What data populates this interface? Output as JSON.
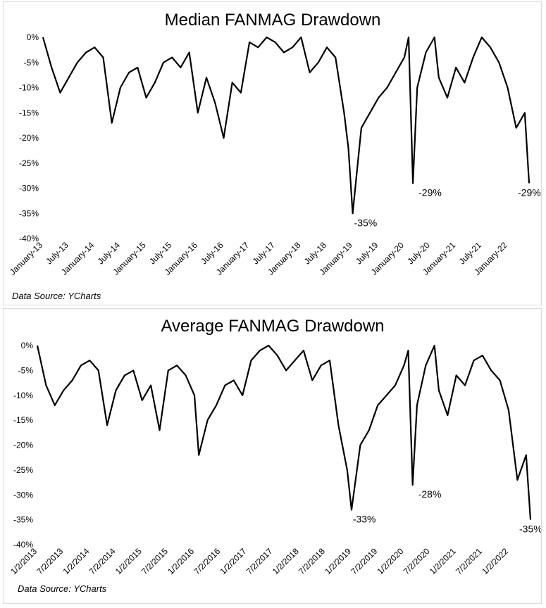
{
  "charts": [
    {
      "title": "Median FANMAG Drawdown",
      "source": "Data Source: YCharts",
      "chart_data": {
        "type": "line",
        "title": "Median FANMAG Drawdown",
        "xlabel": "",
        "ylabel": "",
        "ylim": [
          -40,
          0
        ],
        "y_ticks": [
          "0%",
          "-5%",
          "-10%",
          "-15%",
          "-20%",
          "-25%",
          "-30%",
          "-35%",
          "-40%"
        ],
        "x_ticks": [
          "January-13",
          "July-13",
          "January-14",
          "July-14",
          "January-15",
          "July-15",
          "January-16",
          "July-16",
          "January-17",
          "July-17",
          "January-18",
          "July-18",
          "January-19",
          "July-19",
          "January-20",
          "July-20",
          "January-21",
          "July-21",
          "January-22"
        ],
        "x_start": "2013-01",
        "x_end": "2022-06",
        "grid": false,
        "x": [
          "2013-01",
          "2013-03",
          "2013-05",
          "2013-07",
          "2013-09",
          "2013-11",
          "2014-01",
          "2014-03",
          "2014-05",
          "2014-07",
          "2014-09",
          "2014-11",
          "2015-01",
          "2015-03",
          "2015-05",
          "2015-07",
          "2015-09",
          "2015-11",
          "2016-01",
          "2016-03",
          "2016-05",
          "2016-07",
          "2016-09",
          "2016-11",
          "2017-01",
          "2017-03",
          "2017-05",
          "2017-07",
          "2017-09",
          "2017-11",
          "2018-01",
          "2018-03",
          "2018-05",
          "2018-07",
          "2018-09",
          "2018-11",
          "2018-12",
          "2019-01",
          "2019-03",
          "2019-05",
          "2019-07",
          "2019-09",
          "2019-11",
          "2020-01",
          "2020-02",
          "2020-03",
          "2020-04",
          "2020-06",
          "2020-08",
          "2020-09",
          "2020-11",
          "2021-01",
          "2021-03",
          "2021-05",
          "2021-07",
          "2021-09",
          "2021-11",
          "2022-01",
          "2022-03",
          "2022-05",
          "2022-06"
        ],
        "y": [
          0,
          -6,
          -11,
          -8,
          -5,
          -3,
          -2,
          -4,
          -17,
          -10,
          -7,
          -6,
          -12,
          -9,
          -5,
          -4,
          -6,
          -3,
          -15,
          -8,
          -13,
          -20,
          -9,
          -11,
          -1,
          -2,
          0,
          -1,
          -3,
          -2,
          0,
          -7,
          -5,
          -2,
          -4,
          -15,
          -22,
          -35,
          -18,
          -15,
          -12,
          -10,
          -7,
          -4,
          0,
          -29,
          -10,
          -3,
          0,
          -8,
          -12,
          -6,
          -9,
          -4,
          0,
          -2,
          -5,
          -10,
          -18,
          -15,
          -29
        ],
        "annotations": [
          {
            "text": "-35%",
            "x": "2018-12",
            "y": -35
          },
          {
            "text": "-29%",
            "x": "2020-03",
            "y": -29
          },
          {
            "text": "-29%",
            "x": "2022-06",
            "y": -29
          }
        ]
      }
    },
    {
      "title": "Average FANMAG Drawdown",
      "source": "Data Source: YCharts",
      "chart_data": {
        "type": "line",
        "title": "Average FANMAG Drawdown",
        "xlabel": "",
        "ylabel": "",
        "ylim": [
          -40,
          0
        ],
        "y_ticks": [
          "0%",
          "-5%",
          "-10%",
          "-15%",
          "-20%",
          "-25%",
          "-30%",
          "-35%",
          "-40%"
        ],
        "x_ticks": [
          "1/2/2013",
          "7/2/2013",
          "1/2/2014",
          "7/2/2014",
          "1/2/2015",
          "7/2/2015",
          "1/2/2016",
          "7/2/2016",
          "1/2/2017",
          "7/2/2017",
          "1/2/2018",
          "7/2/2018",
          "1/2/2019",
          "7/2/2019",
          "1/2/2020",
          "7/2/2020",
          "1/2/2021",
          "7/2/2021",
          "1/2/2022"
        ],
        "x_start": "2013-01",
        "x_end": "2022-06",
        "grid": false,
        "x": [
          "2013-01",
          "2013-03",
          "2013-05",
          "2013-07",
          "2013-09",
          "2013-11",
          "2014-01",
          "2014-03",
          "2014-05",
          "2014-07",
          "2014-09",
          "2014-11",
          "2015-01",
          "2015-03",
          "2015-05",
          "2015-07",
          "2015-09",
          "2015-11",
          "2016-01",
          "2016-02",
          "2016-04",
          "2016-06",
          "2016-08",
          "2016-10",
          "2016-12",
          "2017-02",
          "2017-04",
          "2017-06",
          "2017-08",
          "2017-10",
          "2017-12",
          "2018-02",
          "2018-04",
          "2018-06",
          "2018-08",
          "2018-10",
          "2018-12",
          "2019-01",
          "2019-03",
          "2019-05",
          "2019-07",
          "2019-09",
          "2019-11",
          "2020-01",
          "2020-02",
          "2020-03",
          "2020-04",
          "2020-06",
          "2020-08",
          "2020-09",
          "2020-11",
          "2021-01",
          "2021-03",
          "2021-05",
          "2021-07",
          "2021-09",
          "2021-11",
          "2022-01",
          "2022-03",
          "2022-05",
          "2022-06"
        ],
        "y": [
          0,
          -8,
          -12,
          -9,
          -7,
          -4,
          -3,
          -5,
          -16,
          -9,
          -6,
          -5,
          -11,
          -8,
          -17,
          -5,
          -4,
          -6,
          -10,
          -22,
          -15,
          -12,
          -8,
          -7,
          -10,
          -3,
          -1,
          0,
          -2,
          -5,
          -3,
          -1,
          -7,
          -4,
          -3,
          -16,
          -25,
          -33,
          -20,
          -17,
          -12,
          -10,
          -8,
          -4,
          -1,
          -28,
          -12,
          -4,
          0,
          -9,
          -14,
          -6,
          -8,
          -3,
          -2,
          -5,
          -7,
          -13,
          -27,
          -22,
          -35
        ],
        "annotations": [
          {
            "text": "-33%",
            "x": "2018-12",
            "y": -33
          },
          {
            "text": "-28%",
            "x": "2020-03",
            "y": -28
          },
          {
            "text": "-35%",
            "x": "2022-06",
            "y": -35
          }
        ]
      }
    }
  ]
}
